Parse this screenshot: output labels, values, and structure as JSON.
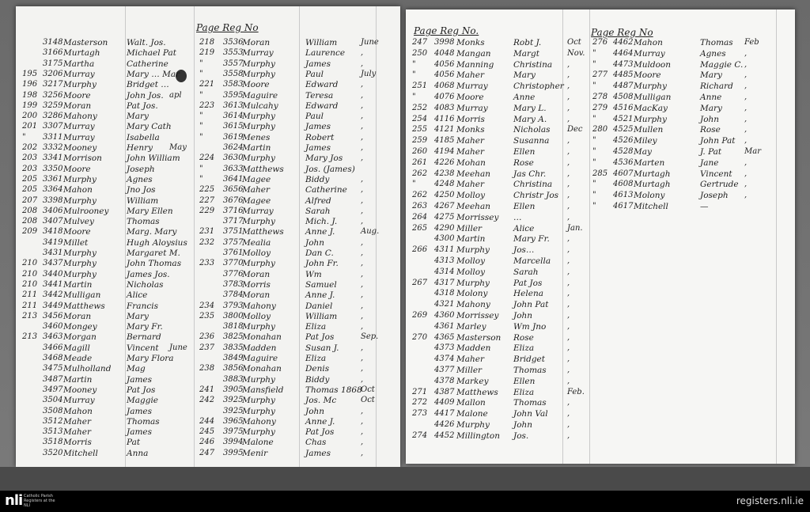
{
  "left_page": {
    "header": "Page Reg No",
    "columns_a": [
      [
        "",
        "3148",
        "Masterson",
        "Walt. Jos.",
        ""
      ],
      [
        "",
        "3166",
        "Murtagh",
        "Michael Pat",
        ""
      ],
      [
        "",
        "3175",
        "Martha",
        "Catherine",
        ""
      ],
      [
        "195",
        "3206",
        "Murray",
        "Mary … Mar",
        ""
      ],
      [
        "196",
        "3217",
        "Murphy",
        "Bridget …",
        ""
      ],
      [
        "198",
        "3256",
        "Moore",
        "John Jos.",
        "apl"
      ],
      [
        "199",
        "3259",
        "Moran",
        "Pat Jos.",
        ""
      ],
      [
        "200",
        "3286",
        "Mahony",
        "Mary",
        ""
      ],
      [
        "201",
        "3307",
        "Murray",
        "Mary Cath",
        ""
      ],
      [
        "\"",
        "3311",
        "Murray",
        "Isabella",
        ""
      ],
      [
        "202",
        "3332",
        "Mooney",
        "Henry",
        "May"
      ],
      [
        "203",
        "3341",
        "Morrison",
        "John William",
        ""
      ],
      [
        "203",
        "3350",
        "Moore",
        "Joseph",
        ""
      ],
      [
        "205",
        "3361",
        "Murphy",
        "Agnes",
        ""
      ],
      [
        "205",
        "3364",
        "Mahon",
        "Jno Jos",
        ""
      ],
      [
        "207",
        "3398",
        "Murphy",
        "William",
        ""
      ],
      [
        "208",
        "3406",
        "Mulrooney",
        "Mary Ellen",
        ""
      ],
      [
        "208",
        "3407",
        "Mulvey",
        "Thomas",
        ""
      ],
      [
        "209",
        "3418",
        "Moore",
        "Marg. Mary",
        ""
      ],
      [
        "",
        "3419",
        "Millet",
        "Hugh Aloysius",
        ""
      ],
      [
        "",
        "3431",
        "Murphy",
        "Margaret M.",
        ""
      ],
      [
        "210",
        "3437",
        "Murphy",
        "John Thomas",
        ""
      ],
      [
        "210",
        "3440",
        "Murphy",
        "James Jos.",
        ""
      ],
      [
        "210",
        "3441",
        "Martin",
        "Nicholas",
        ""
      ],
      [
        "211",
        "3442",
        "Mulligan",
        "Alice",
        ""
      ],
      [
        "211",
        "3449",
        "Matthews",
        "Francis",
        ""
      ],
      [
        "213",
        "3456",
        "Moran",
        "Mary",
        ""
      ],
      [
        "",
        "3460",
        "Mongey",
        "Mary Fr.",
        ""
      ],
      [
        "213",
        "3463",
        "Morgan",
        "Bernard",
        ""
      ],
      [
        "",
        "3466",
        "Magill",
        "Vincent",
        "June"
      ],
      [
        "",
        "3468",
        "Meade",
        "Mary Flora",
        ""
      ],
      [
        "",
        "3475",
        "Mulholland",
        "Mag",
        ""
      ],
      [
        "",
        "3487",
        "Martin",
        "James",
        ""
      ],
      [
        "",
        "3497",
        "Mooney",
        "Pat Jos",
        ""
      ],
      [
        "",
        "3504",
        "Murray",
        "Maggie",
        ""
      ],
      [
        "",
        "3508",
        "Mahon",
        "James",
        ""
      ],
      [
        "",
        "3512",
        "Maher",
        "Thomas",
        ""
      ],
      [
        "",
        "3513",
        "Maher",
        "James",
        ""
      ],
      [
        "",
        "3518",
        "Morris",
        "Pat",
        ""
      ],
      [
        "",
        "3520",
        "Mitchell",
        "Anna",
        ""
      ]
    ],
    "columns_b": [
      [
        "218",
        "3536",
        "Moran",
        "William",
        "June"
      ],
      [
        "219",
        "3553",
        "Murray",
        "Laurence",
        ","
      ],
      [
        "\"",
        "3557",
        "Murphy",
        "James",
        ","
      ],
      [
        "\"",
        "3558",
        "Murphy",
        "Paul",
        "July"
      ],
      [
        "221",
        "3583",
        "Moore",
        "Edward",
        ","
      ],
      [
        "\"",
        "3595",
        "Maguire",
        "Teresa",
        ","
      ],
      [
        "223",
        "3613",
        "Mulcahy",
        "Edward",
        ","
      ],
      [
        "\"",
        "3614",
        "Murphy",
        "Paul",
        ","
      ],
      [
        "\"",
        "3615",
        "Murphy",
        "James",
        ","
      ],
      [
        "\"",
        "3619",
        "Menes",
        "Robert",
        ","
      ],
      [
        "",
        "3624",
        "Martin",
        "James",
        ","
      ],
      [
        "224",
        "3630",
        "Murphy",
        "Mary Jos",
        ","
      ],
      [
        "\"",
        "3633",
        "Matthews",
        "Jos. (James)",
        ""
      ],
      [
        "\"",
        "3641",
        "Magee",
        "Biddy",
        ","
      ],
      [
        "225",
        "3656",
        "Maher",
        "Catherine",
        ","
      ],
      [
        "227",
        "3676",
        "Magee",
        "Alfred",
        ","
      ],
      [
        "229",
        "3716",
        "Murray",
        "Sarah",
        ","
      ],
      [
        "",
        "3717",
        "Murphy",
        "Mich. J.",
        ","
      ],
      [
        "231",
        "3751",
        "Matthews",
        "Anne J.",
        "Aug."
      ],
      [
        "232",
        "3757",
        "Mealia",
        "John",
        ","
      ],
      [
        "",
        "3761",
        "Molloy",
        "Dan C.",
        ","
      ],
      [
        "233",
        "3770",
        "Murphy",
        "John Fr.",
        ","
      ],
      [
        "",
        "3776",
        "Moran",
        "Wm",
        ","
      ],
      [
        "",
        "3783",
        "Morris",
        "Samuel",
        ","
      ],
      [
        "",
        "3784",
        "Moran",
        "Anne J.",
        ","
      ],
      [
        "234",
        "3793",
        "Mahony",
        "Daniel",
        ","
      ],
      [
        "235",
        "3800",
        "Molloy",
        "William",
        ","
      ],
      [
        "",
        "3818",
        "Murphy",
        "Eliza",
        ","
      ],
      [
        "236",
        "3825",
        "Monahan",
        "Pat Jos",
        "Sep."
      ],
      [
        "237",
        "3835",
        "Madden",
        "Susan J.",
        ","
      ],
      [
        "",
        "3849",
        "Maguire",
        "Eliza",
        ","
      ],
      [
        "238",
        "3856",
        "Monahan",
        "Denis",
        ","
      ],
      [
        "",
        "3883",
        "Murphy",
        "Biddy",
        ","
      ],
      [
        "241",
        "3905",
        "Mansfield",
        "Thomas 1868",
        "Oct"
      ],
      [
        "242",
        "3925",
        "Murphy",
        "Jos. Mc",
        "Oct"
      ],
      [
        "",
        "3925",
        "Murphy",
        "John",
        ","
      ],
      [
        "244",
        "3965",
        "Mahony",
        "Anne J.",
        ","
      ],
      [
        "245",
        "3975",
        "Murphy",
        "Pat Jos",
        ","
      ],
      [
        "246",
        "3994",
        "Malone",
        "Chas",
        ","
      ],
      [
        "247",
        "3995",
        "Menir",
        "James",
        ","
      ]
    ]
  },
  "right_page": {
    "header_a": "Page Reg No.",
    "header_b": "Page Reg No",
    "columns_a": [
      [
        "247",
        "3998",
        "Monks",
        "Robt J.",
        "Oct"
      ],
      [
        "250",
        "4048",
        "Mangan",
        "Margt",
        "Nov."
      ],
      [
        "\"",
        "4056",
        "Manning",
        "Christina",
        ","
      ],
      [
        "\"",
        "4056",
        "Maher",
        "Mary",
        ","
      ],
      [
        "251",
        "4068",
        "Murray",
        "Christopher",
        ","
      ],
      [
        "\"",
        "4076",
        "Moore",
        "Anne",
        ","
      ],
      [
        "252",
        "4083",
        "Murray",
        "Mary L.",
        ","
      ],
      [
        "254",
        "4116",
        "Morris",
        "Mary A.",
        ","
      ],
      [
        "255",
        "4121",
        "Monks",
        "Nicholas",
        "Dec"
      ],
      [
        "259",
        "4185",
        "Maher",
        "Susanna",
        ","
      ],
      [
        "260",
        "4194",
        "Maher",
        "Ellen",
        ","
      ],
      [
        "261",
        "4226",
        "Mohan",
        "Rose",
        ","
      ],
      [
        "262",
        "4238",
        "Meehan",
        "Jas Chr.",
        ","
      ],
      [
        "\"",
        "4248",
        "Maher",
        "Christina",
        ","
      ],
      [
        "262",
        "4250",
        "Molloy",
        "Christr Jos",
        ","
      ],
      [
        "263",
        "4267",
        "Meehan",
        "Ellen",
        ","
      ],
      [
        "264",
        "4275",
        "Morrissey",
        "…",
        ","
      ],
      [
        "265",
        "4290",
        "Miller",
        "Alice",
        "Jan."
      ],
      [
        "",
        "4300",
        "Martin",
        "Mary Fr.",
        ","
      ],
      [
        "266",
        "4311",
        "Murphy",
        "Jos…",
        ","
      ],
      [
        "",
        "4313",
        "Molloy",
        "Marcella",
        ","
      ],
      [
        "",
        "4314",
        "Molloy",
        "Sarah",
        ","
      ],
      [
        "267",
        "4317",
        "Murphy",
        "Pat Jos",
        ","
      ],
      [
        "",
        "4318",
        "Molony",
        "Helena",
        ","
      ],
      [
        "",
        "4321",
        "Mahony",
        "John Pat",
        ","
      ],
      [
        "269",
        "4360",
        "Morrissey",
        "John",
        ","
      ],
      [
        "",
        "4361",
        "Marley",
        "Wm Jno",
        ","
      ],
      [
        "270",
        "4365",
        "Masterson",
        "Rose",
        ","
      ],
      [
        "",
        "4373",
        "Madden",
        "Eliza",
        ","
      ],
      [
        "",
        "4374",
        "Maher",
        "Bridget",
        ","
      ],
      [
        "",
        "4377",
        "Miller",
        "Thomas",
        ","
      ],
      [
        "",
        "4378",
        "Markey",
        "Ellen",
        ","
      ],
      [
        "271",
        "4387",
        "Matthews",
        "Eliza",
        "Feb."
      ],
      [
        "272",
        "4409",
        "Mallon",
        "Thomas",
        ","
      ],
      [
        "273",
        "4417",
        "Malone",
        "John Val",
        ","
      ],
      [
        "",
        "4426",
        "Murphy",
        "John",
        ","
      ],
      [
        "274",
        "4452",
        "Millington",
        "Jos.",
        ","
      ]
    ],
    "columns_b": [
      [
        "276",
        "4462",
        "Mahon",
        "Thomas",
        "Feb"
      ],
      [
        "\"",
        "4464",
        "Murray",
        "Agnes",
        ","
      ],
      [
        "\"",
        "4473",
        "Muldoon",
        "Maggie C.",
        ","
      ],
      [
        "277",
        "4485",
        "Moore",
        "Mary",
        ","
      ],
      [
        "\"",
        "4487",
        "Murphy",
        "Richard",
        ","
      ],
      [
        "278",
        "4508",
        "Mulligan",
        "Anne",
        ","
      ],
      [
        "279",
        "4516",
        "MacKay",
        "Mary",
        ","
      ],
      [
        "\"",
        "4521",
        "Murphy",
        "John",
        ","
      ],
      [
        "280",
        "4525",
        "Mullen",
        "Rose",
        ","
      ],
      [
        "\"",
        "4526",
        "Miley",
        "John Pat",
        ","
      ],
      [
        "\"",
        "4528",
        "May",
        "J. Pat",
        "Mar"
      ],
      [
        "\"",
        "4536",
        "Marten",
        "Jane",
        ","
      ],
      [
        "285",
        "4607",
        "Murtagh",
        "Vincent",
        ","
      ],
      [
        "\"",
        "4608",
        "Murtagh",
        "Gertrude",
        ","
      ],
      [
        "\"",
        "4613",
        "Molony",
        "Joseph",
        ","
      ],
      [
        "\"",
        "4617",
        "Mitchell",
        "—",
        ""
      ]
    ]
  },
  "footer": {
    "logo": "nli",
    "logo_caption": "Catholic Parish Registers at the NLI",
    "site": "registers.nli.ie"
  }
}
